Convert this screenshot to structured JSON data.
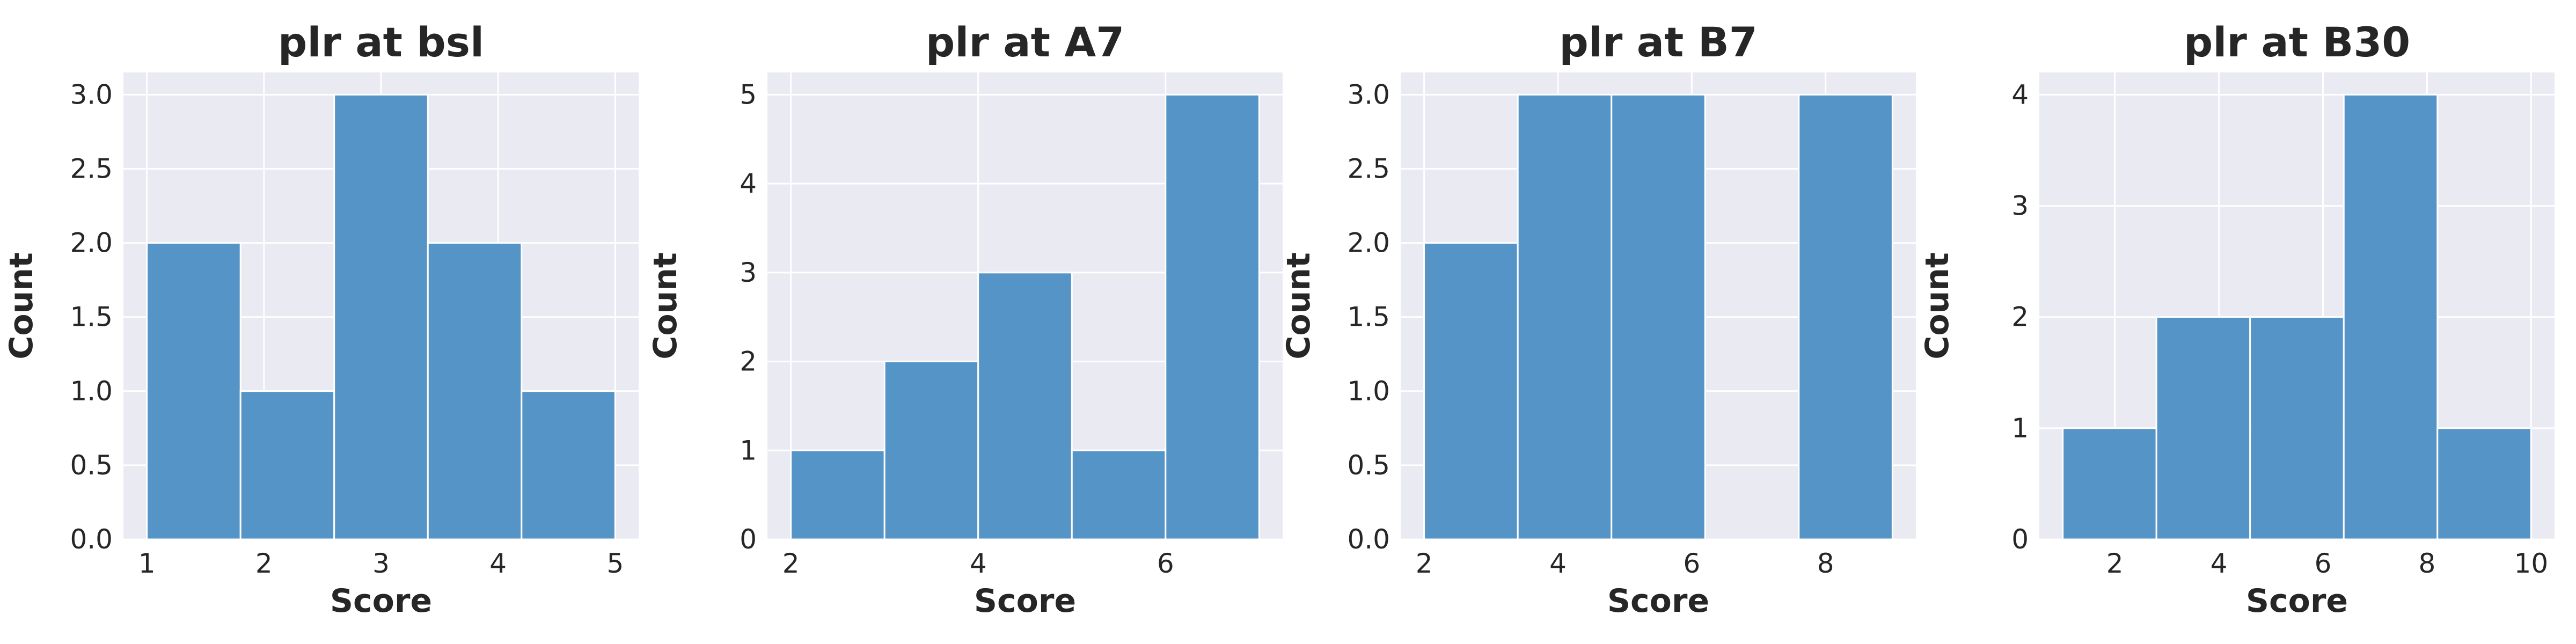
{
  "chart_data": [
    {
      "type": "bar",
      "title": "plr at bsl",
      "xlabel": "Score",
      "ylabel": "Count",
      "xlim": [
        0.8,
        5.2
      ],
      "ylim": [
        0,
        3.15
      ],
      "xticks": [
        "1",
        "2",
        "3",
        "4",
        "5"
      ],
      "xtick_values": [
        1,
        2,
        3,
        4,
        5
      ],
      "yticks": [
        "0.0",
        "0.5",
        "1.0",
        "1.5",
        "2.0",
        "2.5",
        "3.0"
      ],
      "ytick_values": [
        0,
        0.5,
        1.0,
        1.5,
        2.0,
        2.5,
        3.0
      ],
      "bin_edges": [
        1.0,
        1.8,
        2.6,
        3.4,
        4.2,
        5.0
      ],
      "values": [
        2,
        1,
        3,
        2,
        1
      ]
    },
    {
      "type": "bar",
      "title": "plr at A7",
      "xlabel": "Score",
      "ylabel": "Count",
      "xlim": [
        1.75,
        7.25
      ],
      "ylim": [
        0,
        5.25
      ],
      "xticks": [
        "2",
        "4",
        "6"
      ],
      "xtick_values": [
        2,
        4,
        6
      ],
      "yticks": [
        "0",
        "1",
        "2",
        "3",
        "4",
        "5"
      ],
      "ytick_values": [
        0,
        1,
        2,
        3,
        4,
        5
      ],
      "bin_edges": [
        2.0,
        3.0,
        4.0,
        5.0,
        6.0,
        7.0
      ],
      "values": [
        1,
        2,
        3,
        1,
        5
      ]
    },
    {
      "type": "bar",
      "title": "plr at B7",
      "xlabel": "Score",
      "ylabel": "Count",
      "xlim": [
        1.65,
        9.35
      ],
      "ylim": [
        0,
        3.15
      ],
      "xticks": [
        "2",
        "4",
        "6",
        "8"
      ],
      "xtick_values": [
        2,
        4,
        6,
        8
      ],
      "yticks": [
        "0.0",
        "0.5",
        "1.0",
        "1.5",
        "2.0",
        "2.5",
        "3.0"
      ],
      "ytick_values": [
        0,
        0.5,
        1.0,
        1.5,
        2.0,
        2.5,
        3.0
      ],
      "bin_edges": [
        2.0,
        3.4,
        4.8,
        6.2,
        7.6,
        9.0
      ],
      "values": [
        2,
        3,
        3,
        0,
        3
      ]
    },
    {
      "type": "bar",
      "title": "plr at B30",
      "xlabel": "Score",
      "ylabel": "Count",
      "xlim": [
        0.55,
        10.45
      ],
      "ylim": [
        0,
        4.2
      ],
      "xticks": [
        "2",
        "4",
        "6",
        "8",
        "10"
      ],
      "xtick_values": [
        2,
        4,
        6,
        8,
        10
      ],
      "yticks": [
        "0",
        "1",
        "2",
        "3",
        "4"
      ],
      "ytick_values": [
        0,
        1,
        2,
        3,
        4
      ],
      "bin_edges": [
        1.0,
        2.8,
        4.6,
        6.4,
        8.2,
        10.0
      ],
      "values": [
        1,
        2,
        2,
        4,
        1
      ]
    }
  ],
  "colors": {
    "bar_fill": "#4c8fc3",
    "plot_background": "#eaeaf2",
    "grid": "#ffffff",
    "text": "#262626"
  }
}
